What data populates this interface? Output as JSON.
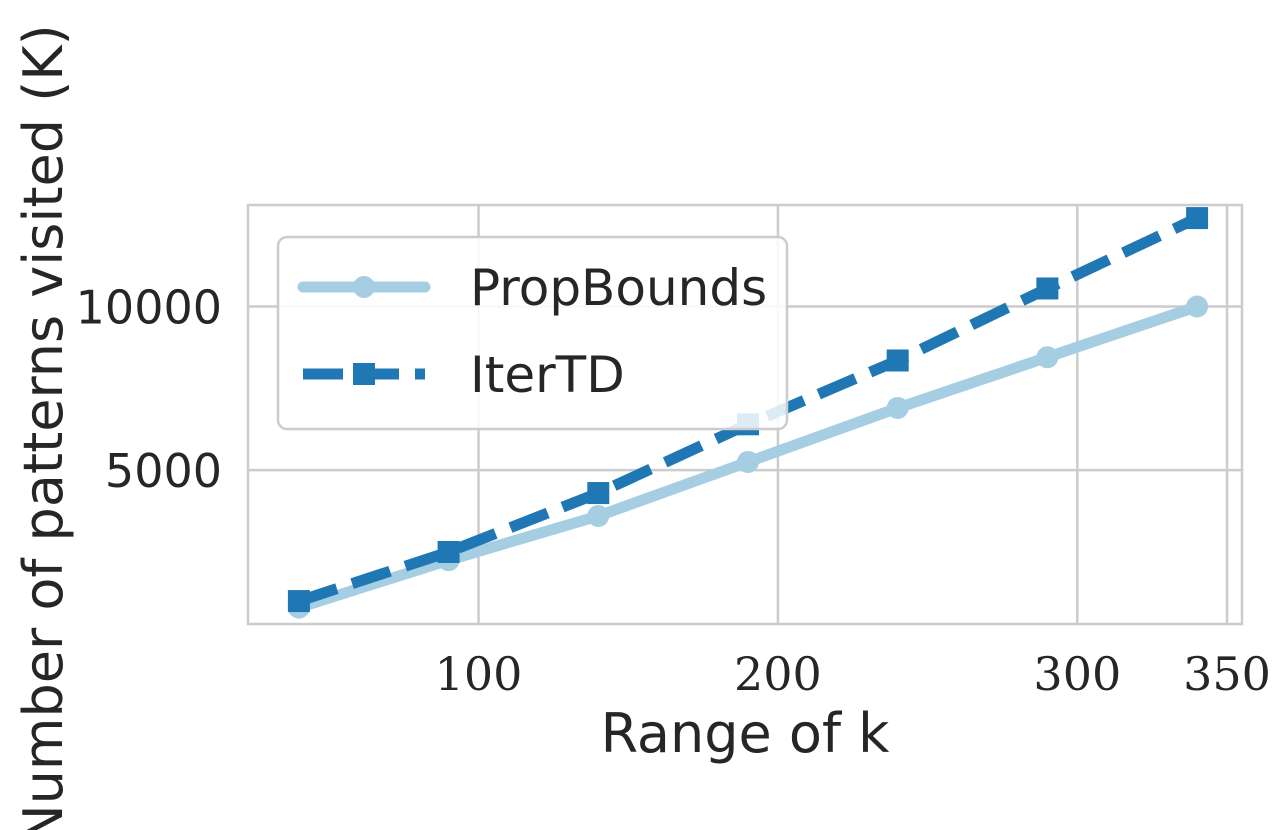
{
  "chart_data": {
    "type": "line",
    "title": "",
    "xlabel": "Range of k",
    "ylabel": "Number of patterns visited (K)",
    "xlim": [
      23,
      355
    ],
    "ylim": [
      300,
      13100
    ],
    "xticks": [
      100,
      200,
      300,
      350
    ],
    "xtick_labels": [
      "100",
      "200",
      "300",
      "350"
    ],
    "yticks": [
      5000,
      10000
    ],
    "ytick_labels": [
      "5000",
      "10000"
    ],
    "grid": true,
    "legend_position": "upper left",
    "series": [
      {
        "name": "PropBounds",
        "color": "#a6cee3",
        "line_style": "solid",
        "marker": "circle",
        "x": [
          40,
          90,
          140,
          190,
          240,
          290,
          340
        ],
        "y": [
          800,
          2250,
          3600,
          5250,
          6900,
          8450,
          10000
        ]
      },
      {
        "name": "IterTD",
        "color": "#1f78b4",
        "line_style": "dashed",
        "marker": "square",
        "x": [
          40,
          90,
          140,
          190,
          240,
          290,
          340
        ],
        "y": [
          1000,
          2500,
          4300,
          6400,
          8350,
          10550,
          12700
        ]
      }
    ]
  }
}
